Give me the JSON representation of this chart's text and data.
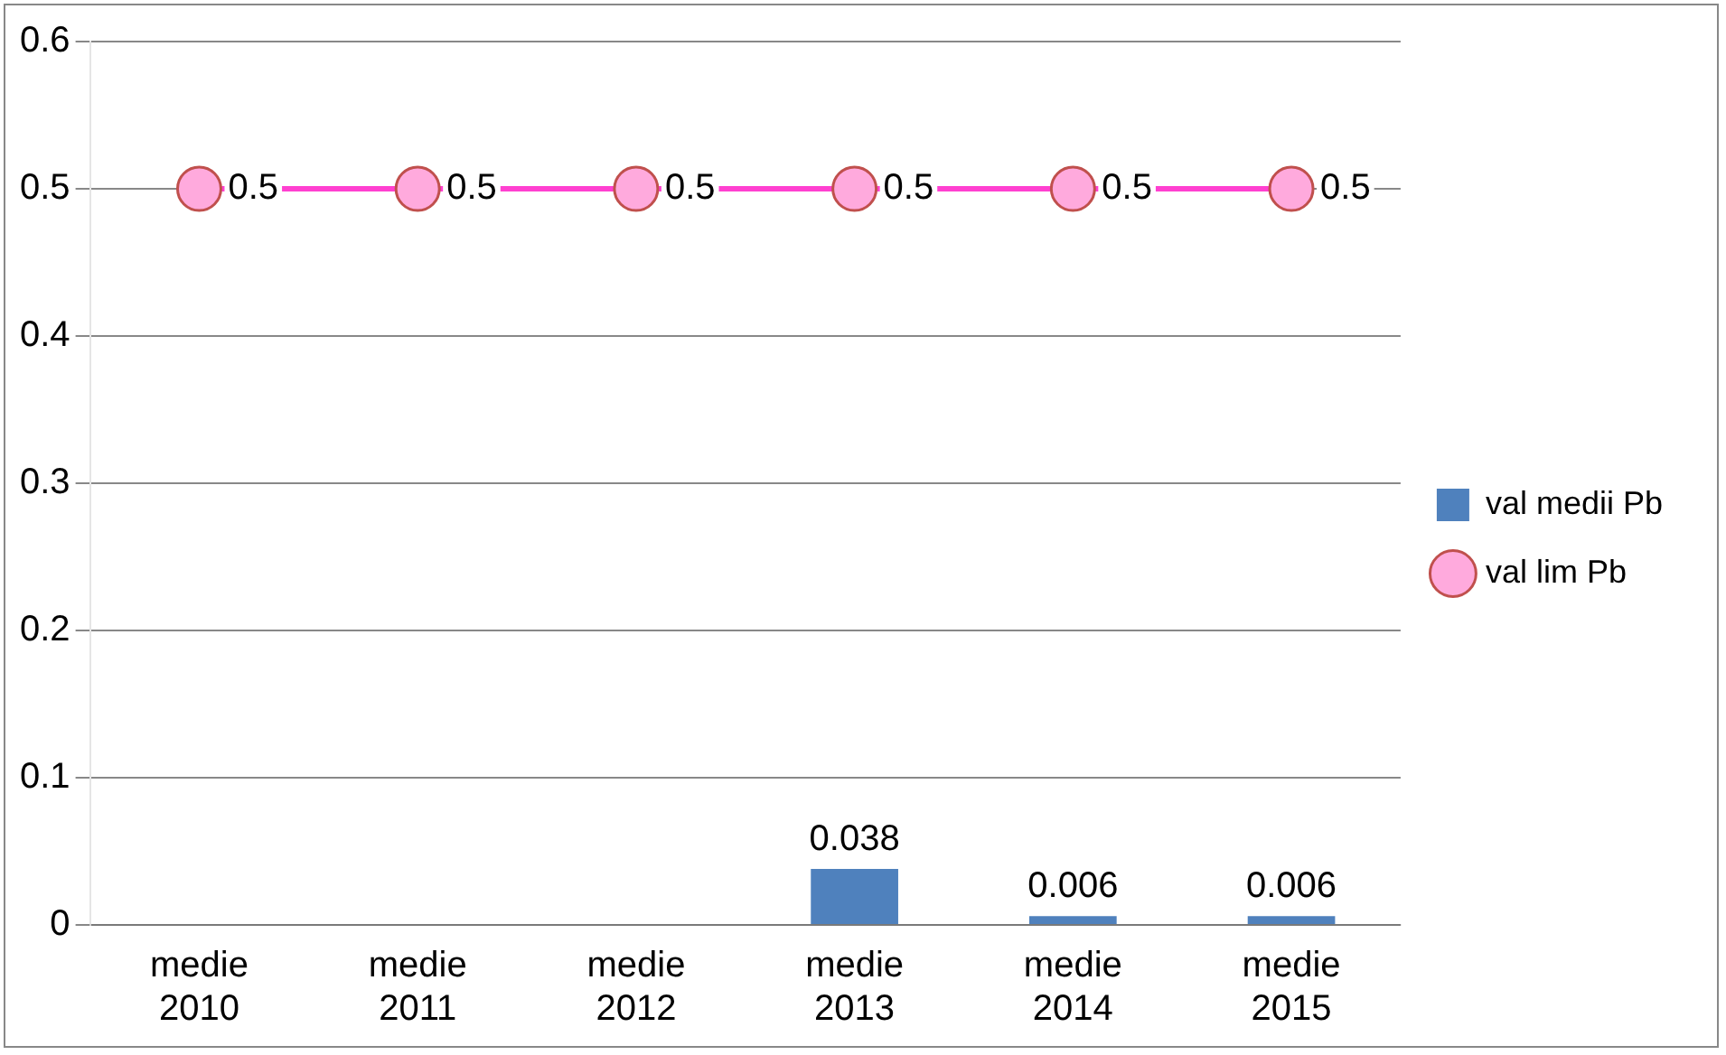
{
  "chart_data": {
    "type": "bar",
    "categories": [
      "medie 2010",
      "medie 2011",
      "medie 2012",
      "medie 2013",
      "medie 2014",
      "medie 2015"
    ],
    "series": [
      {
        "name": "val medii Pb",
        "color": "#4f81bd",
        "values": [
          null,
          null,
          null,
          0.038,
          0.006,
          0.006
        ]
      },
      {
        "name": "val lim Pb",
        "type": "line",
        "color": "#ff40d0",
        "values": [
          0.5,
          0.5,
          0.5,
          0.5,
          0.5,
          0.5
        ]
      }
    ],
    "ylim": [
      0,
      0.6
    ],
    "yticks": [
      0,
      0.1,
      0.2,
      0.3,
      0.4,
      0.5,
      0.6
    ],
    "grid": "y",
    "legend": "right",
    "marker": "circle",
    "data_labels": true
  }
}
